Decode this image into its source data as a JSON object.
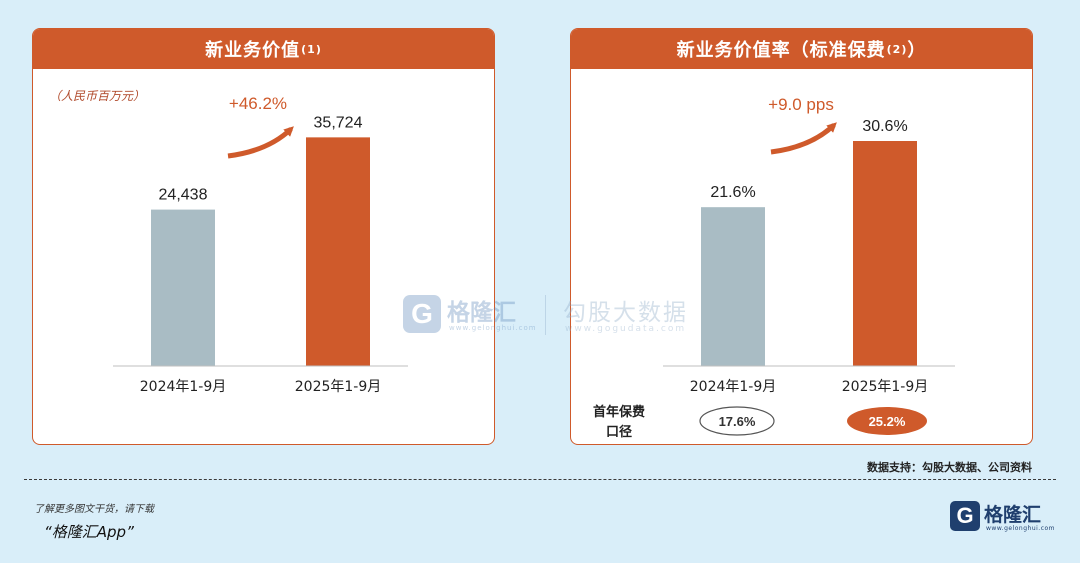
{
  "left_panel": {
    "title": "新业务价值",
    "title_note": "(1)",
    "unit": "（人民币百万元）",
    "growth": "+46.2%"
  },
  "right_panel": {
    "title": "新业务价值率（标准保费",
    "title_note": "(2)",
    "title_close": "）",
    "growth": "+9.0 pps",
    "fyp_label_line1": "首年保费",
    "fyp_label_line2": "口径",
    "fyp_values": [
      "17.6%",
      "25.2%"
    ]
  },
  "chart_data": [
    {
      "type": "bar",
      "title": "新业务价值(1)",
      "categories": [
        "2024年1-9月",
        "2025年1-9月"
      ],
      "values": [
        24438,
        35724
      ],
      "value_labels": [
        "24,438",
        "35,724"
      ],
      "ylabel": "（人民币百万元）",
      "ylim": [
        0,
        40000
      ],
      "colors": [
        "#a9bcc4",
        "#cf5a2b"
      ],
      "grid": false
    },
    {
      "type": "bar",
      "title": "新业务价值率（标准保费(2)）",
      "categories": [
        "2024年1-9月",
        "2025年1-9月"
      ],
      "values": [
        21.6,
        30.6
      ],
      "value_labels": [
        "21.6%",
        "30.6%"
      ],
      "ylim": [
        0,
        34
      ],
      "colors": [
        "#a9bcc4",
        "#cf5a2b"
      ],
      "grid": false
    }
  ],
  "watermark": {
    "brand": "格隆汇",
    "brand_sub": "www.gelonghui.com",
    "partner": "勾股大数据",
    "partner_sub": "www.gogudata.com"
  },
  "source": "数据支持：勾股大数据、公司资料",
  "footer": {
    "line1": "了解更多图文干货，请下载",
    "line2": "“格隆汇App”"
  },
  "logo": {
    "text": "格隆汇",
    "sub": "www.gelonghui.com"
  },
  "colors": {
    "accent": "#cf5a2b",
    "bar_2024": "#a9bcc4",
    "background": "#d9eef9"
  }
}
